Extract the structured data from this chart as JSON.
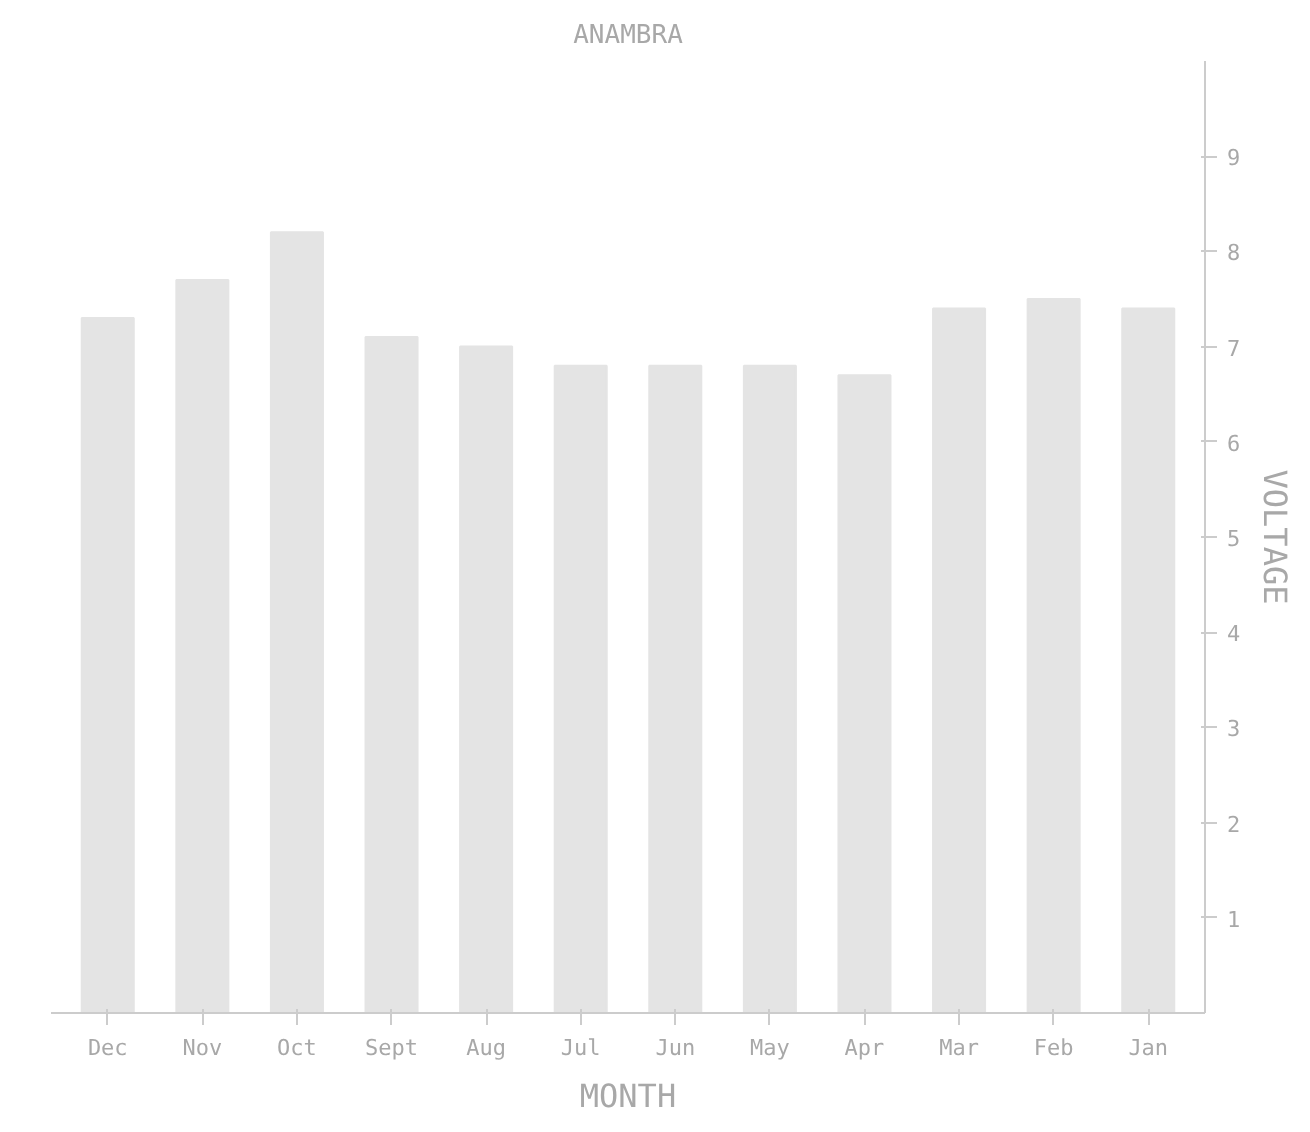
{
  "chart_data": {
    "type": "bar",
    "title": "ANAMBRA",
    "xlabel": "MONTH",
    "ylabel": "VOLTAGE",
    "categories": [
      "Dec",
      "Nov",
      "Oct",
      "Sept",
      "Aug",
      "Jul",
      "Jun",
      "May",
      "Apr",
      "Mar",
      "Feb",
      "Jan"
    ],
    "values": [
      7.3,
      7.7,
      8.2,
      7.1,
      7.0,
      6.8,
      6.8,
      6.8,
      6.7,
      7.4,
      7.5,
      7.4
    ],
    "color": "#e4e4e4",
    "ylim": [
      0,
      10
    ],
    "yticks": [
      1,
      2,
      3,
      4,
      5,
      6,
      7,
      8,
      9
    ],
    "grid": false
  }
}
